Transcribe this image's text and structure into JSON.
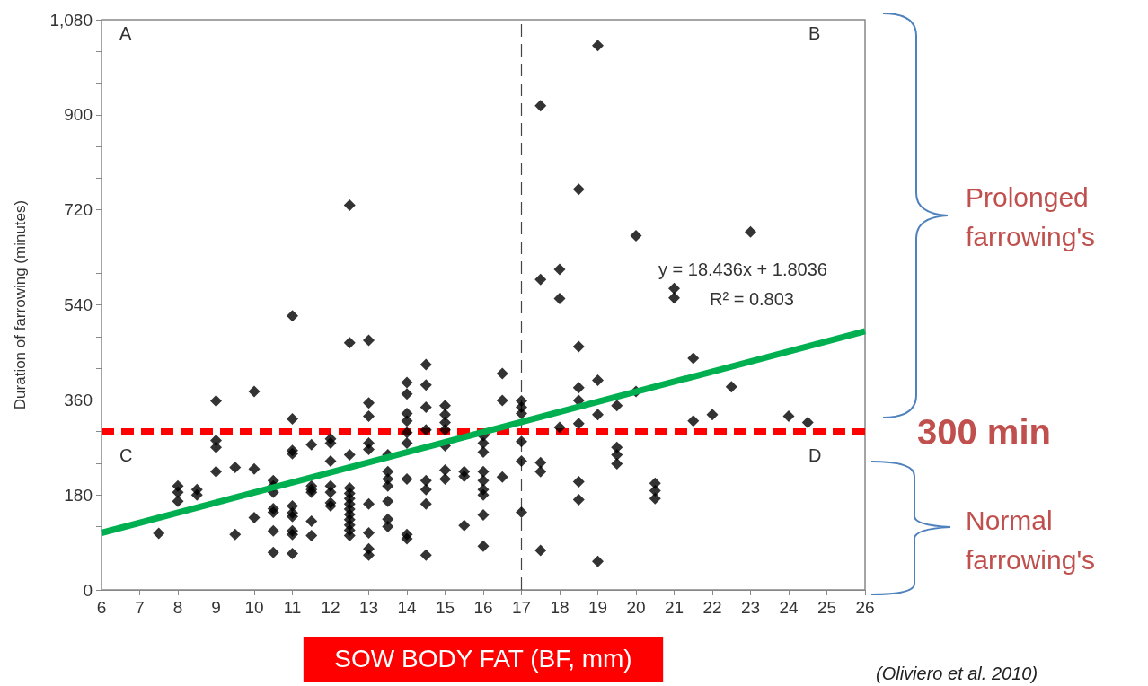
{
  "chart_data": {
    "type": "scatter",
    "xlabel": "SOW BODY FAT (BF, mm)",
    "ylabel": "Duration of farrowing (minutes)",
    "xlim": [
      6,
      26
    ],
    "xticks": [
      6,
      7,
      8,
      9,
      10,
      11,
      12,
      13,
      14,
      15,
      16,
      17,
      18,
      19,
      20,
      21,
      22,
      23,
      24,
      25,
      26
    ],
    "ylim": [
      0,
      1080
    ],
    "yticks": [
      0,
      {
        "value": 60,
        "label": null
      },
      {
        "value": 120,
        "label": null
      },
      180,
      {
        "value": 240,
        "label": null
      },
      {
        "value": 300,
        "label": null
      },
      360,
      {
        "value": 420,
        "label": null
      },
      {
        "value": 480,
        "label": null
      },
      540,
      {
        "value": 600,
        "label": null
      },
      {
        "value": 660,
        "label": null
      },
      720,
      {
        "value": 780,
        "label": null
      },
      {
        "value": 840,
        "label": null
      },
      900,
      {
        "value": 960,
        "label": null
      },
      {
        "value": 1020,
        "label": null
      },
      {
        "value": 1080,
        "label": "1,080"
      }
    ],
    "grid": false,
    "series": [
      {
        "color": "#000000",
        "marker": "diamond",
        "x": [
          7.5,
          8,
          8,
          8,
          8.5,
          8.5,
          9,
          9,
          9,
          9,
          9.5,
          9.5,
          10,
          10,
          10,
          10.5,
          10.5,
          10.5,
          10.5,
          10.5,
          10.5,
          10.5,
          11,
          11,
          11,
          11,
          11,
          11,
          11,
          11,
          11,
          11,
          11.5,
          11.5,
          11.5,
          11.5,
          11.5,
          11.5,
          12,
          12,
          12,
          12,
          12,
          12,
          12,
          12.5,
          12.5,
          12.5,
          12.5,
          12.5,
          12.5,
          12.5,
          12.5,
          12.5,
          12.5,
          12.5,
          12.5,
          12.5,
          13,
          13,
          13,
          13,
          13,
          13,
          13,
          13,
          13,
          13.5,
          13.5,
          13.5,
          13.5,
          13.5,
          13.5,
          13.5,
          14,
          14,
          14,
          14,
          14,
          14,
          14,
          14,
          14,
          14.5,
          14.5,
          14.5,
          14.5,
          14.5,
          14.5,
          14.5,
          14.5,
          15,
          15,
          15,
          15,
          15,
          15,
          15,
          15.5,
          15.5,
          15.5,
          16,
          16,
          16,
          16,
          16,
          16,
          16,
          16,
          16,
          16.5,
          16.5,
          16.5,
          17,
          17,
          17,
          17,
          17,
          17,
          17.5,
          17.5,
          17.5,
          17.5,
          17.5,
          18,
          18,
          18,
          18.5,
          18.5,
          18.5,
          18.5,
          18.5,
          18.5,
          18.5,
          19,
          19,
          19,
          19,
          19.5,
          19.5,
          19.5,
          19.5,
          20,
          20,
          20.5,
          20.5,
          20.5,
          21,
          21,
          21.5,
          21.5,
          22,
          22.5,
          23,
          24,
          24.5
        ],
        "values": [
          107,
          197,
          185,
          168,
          190,
          180,
          358,
          283,
          270,
          224,
          232,
          105,
          376,
          229,
          137,
          207,
          197,
          185,
          154,
          147,
          112,
          71,
          519,
          324,
          264,
          258,
          159,
          146,
          139,
          112,
          105,
          69,
          275,
          197,
          190,
          185,
          130,
          103,
          286,
          278,
          244,
          197,
          185,
          165,
          159,
          729,
          468,
          256,
          193,
          183,
          173,
          163,
          153,
          143,
          133,
          123,
          113,
          103,
          473,
          354,
          329,
          278,
          266,
          163,
          108,
          78,
          66,
          256,
          224,
          210,
          197,
          168,
          134,
          120,
          393,
          371,
          334,
          320,
          298,
          278,
          210,
          105,
          97,
          427,
          388,
          346,
          303,
          207,
          190,
          163,
          66,
          349,
          332,
          317,
          303,
          273,
          227,
          210,
          224,
          215,
          122,
          292,
          278,
          261,
          224,
          207,
          190,
          180,
          142,
          83,
          410,
          359,
          214,
          358,
          346,
          334,
          281,
          244,
          147,
          917,
          588,
          241,
          224,
          75,
          607,
          552,
          308,
          759,
          461,
          383,
          359,
          315,
          205,
          171,
          1031,
          397,
          332,
          54,
          349,
          270,
          256,
          239,
          671,
          376,
          202,
          188,
          173,
          571,
          553,
          439,
          320,
          332,
          385,
          678,
          329,
          317
        ]
      },
      {
        "type": "line",
        "color": "#00b050",
        "marker": "none",
        "line_style": "solid",
        "x": [
          6,
          26
        ],
        "values": [
          108,
          490
        ]
      }
    ],
    "ref_lines": [
      {
        "axis": "x",
        "value": 17,
        "color": "#444444",
        "line_style": "dashed"
      },
      {
        "axis": "y",
        "value": 300,
        "label": "300 min",
        "color": "#ff0000",
        "line_style": "dashed"
      }
    ],
    "annotations": [
      "A",
      "B",
      "C",
      "D",
      "y = 18.436x + 1.8036",
      "R² = 0.803",
      "Prolonged farrowing's",
      "Normal farrowing's",
      "(Oliviero et al. 2010)"
    ]
  }
}
